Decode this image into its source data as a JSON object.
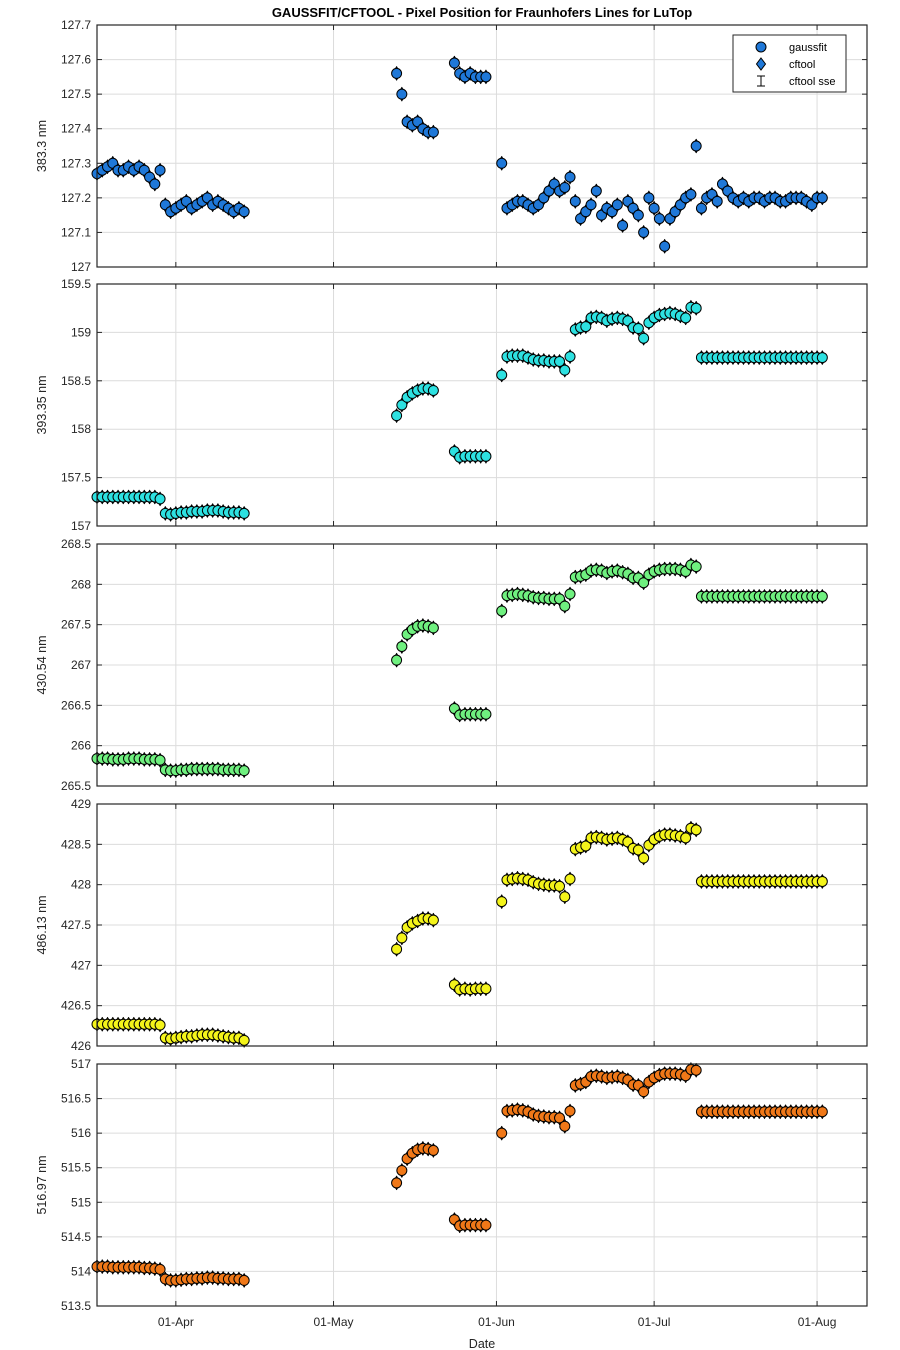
{
  "chart_data": {
    "type": "scatter",
    "title": "GAUSSFIT/CFTOOL - Pixel Position for Fraunhofers Lines for LuTop",
    "xlabel": "Date",
    "x_ticks": [
      "01-Apr",
      "01-May",
      "01-Jun",
      "01-Jul",
      "01-Aug"
    ],
    "x_range_days": [
      -15,
      131.5
    ],
    "x_tick_days": [
      0,
      30,
      61,
      91,
      122
    ],
    "legend": {
      "position": "top-right",
      "entries": [
        "gaussfit",
        "cftool",
        "cftool sse"
      ]
    },
    "panels": [
      {
        "ylabel": "383.3 nm",
        "ylim": [
          127,
          127.7
        ],
        "yticks": [
          "127",
          "127.1",
          "127.2",
          "127.3",
          "127.4",
          "127.5",
          "127.6",
          "127.7"
        ],
        "color": "#1f78d8",
        "x": [
          -15,
          -14,
          -13,
          -12,
          -11,
          -10,
          -9,
          -8,
          -7,
          -6,
          -5,
          -4,
          -3,
          -2,
          -1,
          0,
          1,
          2,
          3,
          4,
          5,
          6,
          7,
          8,
          9,
          10,
          11,
          12,
          13,
          42,
          43,
          44,
          45,
          46,
          47,
          48,
          49,
          53,
          54,
          55,
          56,
          57,
          58,
          59,
          62,
          63,
          64,
          65,
          66,
          67,
          68,
          69,
          70,
          71,
          72,
          73,
          74,
          75,
          76,
          77,
          78,
          79,
          80,
          81,
          82,
          83,
          84,
          85,
          86,
          87,
          88,
          89,
          90,
          91,
          92,
          93,
          94,
          95,
          96,
          97,
          98,
          99,
          100,
          101,
          102,
          103,
          104,
          105,
          106,
          107,
          108,
          109,
          110,
          111,
          112,
          113,
          114,
          115,
          116,
          117,
          118,
          119,
          120,
          121,
          122,
          123
        ],
        "y": [
          127.27,
          127.28,
          127.29,
          127.3,
          127.28,
          127.28,
          127.29,
          127.28,
          127.29,
          127.28,
          127.26,
          127.24,
          127.28,
          127.18,
          127.16,
          127.17,
          127.18,
          127.19,
          127.17,
          127.18,
          127.19,
          127.2,
          127.18,
          127.19,
          127.18,
          127.17,
          127.16,
          127.17,
          127.16,
          127.56,
          127.5,
          127.42,
          127.41,
          127.42,
          127.4,
          127.39,
          127.39,
          127.59,
          127.56,
          127.55,
          127.56,
          127.55,
          127.55,
          127.55,
          127.3,
          127.17,
          127.18,
          127.19,
          127.19,
          127.18,
          127.17,
          127.18,
          127.2,
          127.22,
          127.24,
          127.22,
          127.23,
          127.26,
          127.19,
          127.14,
          127.16,
          127.18,
          127.22,
          127.15,
          127.17,
          127.16,
          127.18,
          127.12,
          127.19,
          127.17,
          127.15,
          127.1,
          127.2,
          127.17,
          127.14,
          127.06,
          127.14,
          127.16,
          127.18,
          127.2,
          127.21,
          127.35,
          127.17,
          127.2,
          127.21,
          127.19,
          127.24,
          127.22,
          127.2,
          127.19,
          127.2,
          127.19,
          127.2,
          127.2,
          127.19,
          127.2,
          127.2,
          127.19,
          127.19,
          127.2,
          127.2,
          127.2,
          127.19,
          127.18,
          127.2,
          127.2
        ]
      },
      {
        "ylabel": "393.35 nm",
        "ylim": [
          157,
          159.5
        ],
        "yticks": [
          "157",
          "157.5",
          "158",
          "158.5",
          "159",
          "159.5"
        ],
        "color": "#2de1e1",
        "x": [
          -15,
          -14,
          -13,
          -12,
          -11,
          -10,
          -9,
          -8,
          -7,
          -6,
          -5,
          -4,
          -3,
          -2,
          -1,
          0,
          1,
          2,
          3,
          4,
          5,
          6,
          7,
          8,
          9,
          10,
          11,
          12,
          13,
          42,
          43,
          44,
          45,
          46,
          47,
          48,
          49,
          53,
          54,
          55,
          56,
          57,
          58,
          59,
          62,
          63,
          64,
          65,
          66,
          67,
          68,
          69,
          70,
          71,
          72,
          73,
          74,
          75,
          76,
          77,
          78,
          79,
          80,
          81,
          82,
          83,
          84,
          85,
          86,
          87,
          88,
          89,
          90,
          91,
          92,
          93,
          94,
          95,
          96,
          97,
          98,
          99,
          100,
          101,
          102,
          103,
          104,
          105,
          106,
          107,
          108,
          109,
          110,
          111,
          112,
          113,
          114,
          115,
          116,
          117,
          118,
          119,
          120,
          121,
          122,
          123
        ],
        "y": [
          157.3,
          157.3,
          157.3,
          157.3,
          157.3,
          157.3,
          157.3,
          157.3,
          157.3,
          157.3,
          157.3,
          157.3,
          157.28,
          157.13,
          157.12,
          157.13,
          157.14,
          157.14,
          157.15,
          157.15,
          157.15,
          157.16,
          157.16,
          157.16,
          157.15,
          157.14,
          157.14,
          157.14,
          157.13,
          158.14,
          158.25,
          158.33,
          158.37,
          158.4,
          158.42,
          158.42,
          158.4,
          157.77,
          157.71,
          157.72,
          157.72,
          157.72,
          157.72,
          157.72,
          158.56,
          158.75,
          158.76,
          158.76,
          158.76,
          158.74,
          158.72,
          158.71,
          158.71,
          158.7,
          158.7,
          158.7,
          158.61,
          158.75,
          159.03,
          159.05,
          159.06,
          159.15,
          159.16,
          159.15,
          159.12,
          159.14,
          159.15,
          159.14,
          159.12,
          159.05,
          159.04,
          158.94,
          159.1,
          159.15,
          159.18,
          159.19,
          159.2,
          159.19,
          159.17,
          159.15,
          159.26,
          159.25,
          158.74,
          158.74,
          158.74,
          158.74,
          158.74,
          158.74,
          158.74,
          158.74,
          158.74,
          158.74,
          158.74,
          158.74,
          158.74,
          158.74,
          158.74,
          158.74,
          158.74,
          158.74,
          158.74,
          158.74,
          158.74,
          158.74,
          158.74,
          158.74
        ]
      },
      {
        "ylabel": "430.54 nm",
        "ylim": [
          265.5,
          268.5
        ],
        "yticks": [
          "265.5",
          "266",
          "266.5",
          "267",
          "267.5",
          "268",
          "268.5"
        ],
        "color": "#6ff07f",
        "x": [
          -15,
          -14,
          -13,
          -12,
          -11,
          -10,
          -9,
          -8,
          -7,
          -6,
          -5,
          -4,
          -3,
          -2,
          -1,
          0,
          1,
          2,
          3,
          4,
          5,
          6,
          7,
          8,
          9,
          10,
          11,
          12,
          13,
          42,
          43,
          44,
          45,
          46,
          47,
          48,
          49,
          53,
          54,
          55,
          56,
          57,
          58,
          59,
          62,
          63,
          64,
          65,
          66,
          67,
          68,
          69,
          70,
          71,
          72,
          73,
          74,
          75,
          76,
          77,
          78,
          79,
          80,
          81,
          82,
          83,
          84,
          85,
          86,
          87,
          88,
          89,
          90,
          91,
          92,
          93,
          94,
          95,
          96,
          97,
          98,
          99,
          100,
          101,
          102,
          103,
          104,
          105,
          106,
          107,
          108,
          109,
          110,
          111,
          112,
          113,
          114,
          115,
          116,
          117,
          118,
          119,
          120,
          121,
          122,
          123
        ],
        "y": [
          265.84,
          265.84,
          265.84,
          265.83,
          265.83,
          265.83,
          265.84,
          265.84,
          265.84,
          265.83,
          265.83,
          265.83,
          265.82,
          265.7,
          265.69,
          265.69,
          265.7,
          265.7,
          265.71,
          265.71,
          265.71,
          265.71,
          265.71,
          265.71,
          265.7,
          265.7,
          265.7,
          265.7,
          265.69,
          267.06,
          267.23,
          267.38,
          267.44,
          267.48,
          267.49,
          267.48,
          267.46,
          266.46,
          266.38,
          266.39,
          266.39,
          266.39,
          266.39,
          266.39,
          267.67,
          267.86,
          267.87,
          267.88,
          267.87,
          267.86,
          267.84,
          267.83,
          267.83,
          267.82,
          267.82,
          267.82,
          267.73,
          267.88,
          268.09,
          268.1,
          268.12,
          268.17,
          268.18,
          268.17,
          268.14,
          268.16,
          268.17,
          268.15,
          268.13,
          268.08,
          268.08,
          268.02,
          268.12,
          268.16,
          268.18,
          268.19,
          268.19,
          268.19,
          268.18,
          268.16,
          268.24,
          268.22,
          267.85,
          267.85,
          267.85,
          267.85,
          267.85,
          267.85,
          267.85,
          267.85,
          267.85,
          267.85,
          267.85,
          267.85,
          267.85,
          267.85,
          267.85,
          267.85,
          267.85,
          267.85,
          267.85,
          267.85,
          267.85,
          267.85,
          267.85,
          267.85
        ]
      },
      {
        "ylabel": "486.13 nm",
        "ylim": [
          426,
          429
        ],
        "yticks": [
          "426",
          "426.5",
          "427",
          "427.5",
          "428",
          "428.5",
          "429"
        ],
        "color": "#f4f41a",
        "x": [
          -15,
          -14,
          -13,
          -12,
          -11,
          -10,
          -9,
          -8,
          -7,
          -6,
          -5,
          -4,
          -3,
          -2,
          -1,
          0,
          1,
          2,
          3,
          4,
          5,
          6,
          7,
          8,
          9,
          10,
          11,
          12,
          13,
          42,
          43,
          44,
          45,
          46,
          47,
          48,
          49,
          53,
          54,
          55,
          56,
          57,
          58,
          59,
          62,
          63,
          64,
          65,
          66,
          67,
          68,
          69,
          70,
          71,
          72,
          73,
          74,
          75,
          76,
          77,
          78,
          79,
          80,
          81,
          82,
          83,
          84,
          85,
          86,
          87,
          88,
          89,
          90,
          91,
          92,
          93,
          94,
          95,
          96,
          97,
          98,
          99,
          100,
          101,
          102,
          103,
          104,
          105,
          106,
          107,
          108,
          109,
          110,
          111,
          112,
          113,
          114,
          115,
          116,
          117,
          118,
          119,
          120,
          121,
          122,
          123
        ],
        "y": [
          426.27,
          426.27,
          426.27,
          426.27,
          426.27,
          426.27,
          426.27,
          426.27,
          426.27,
          426.27,
          426.27,
          426.27,
          426.26,
          426.1,
          426.09,
          426.1,
          426.11,
          426.12,
          426.12,
          426.13,
          426.14,
          426.14,
          426.14,
          426.13,
          426.12,
          426.11,
          426.1,
          426.1,
          426.07,
          427.2,
          427.34,
          427.47,
          427.52,
          427.55,
          427.58,
          427.58,
          427.56,
          426.76,
          426.7,
          426.71,
          426.7,
          426.71,
          426.71,
          426.71,
          427.79,
          428.06,
          428.07,
          428.08,
          428.07,
          428.06,
          428.03,
          428.01,
          428.0,
          427.99,
          427.99,
          427.98,
          427.85,
          428.07,
          428.44,
          428.46,
          428.48,
          428.58,
          428.59,
          428.58,
          428.56,
          428.57,
          428.58,
          428.56,
          428.53,
          428.45,
          428.43,
          428.33,
          428.49,
          428.56,
          428.6,
          428.62,
          428.62,
          428.61,
          428.6,
          428.58,
          428.7,
          428.68,
          428.04,
          428.04,
          428.04,
          428.04,
          428.04,
          428.04,
          428.04,
          428.04,
          428.04,
          428.04,
          428.04,
          428.04,
          428.04,
          428.04,
          428.04,
          428.04,
          428.04,
          428.04,
          428.04,
          428.04,
          428.04,
          428.04,
          428.04,
          428.04
        ]
      },
      {
        "ylabel": "516.97 nm",
        "ylim": [
          513.5,
          517
        ],
        "yticks": [
          "513.5",
          "514",
          "514.5",
          "515",
          "515.5",
          "516",
          "516.5",
          "517"
        ],
        "color": "#f07818",
        "x": [
          -15,
          -14,
          -13,
          -12,
          -11,
          -10,
          -9,
          -8,
          -7,
          -6,
          -5,
          -4,
          -3,
          -2,
          -1,
          0,
          1,
          2,
          3,
          4,
          5,
          6,
          7,
          8,
          9,
          10,
          11,
          12,
          13,
          42,
          43,
          44,
          45,
          46,
          47,
          48,
          49,
          53,
          54,
          55,
          56,
          57,
          58,
          59,
          62,
          63,
          64,
          65,
          66,
          67,
          68,
          69,
          70,
          71,
          72,
          73,
          74,
          75,
          76,
          77,
          78,
          79,
          80,
          81,
          82,
          83,
          84,
          85,
          86,
          87,
          88,
          89,
          90,
          91,
          92,
          93,
          94,
          95,
          96,
          97,
          98,
          99,
          100,
          101,
          102,
          103,
          104,
          105,
          106,
          107,
          108,
          109,
          110,
          111,
          112,
          113,
          114,
          115,
          116,
          117,
          118,
          119,
          120,
          121,
          122,
          123
        ],
        "y": [
          514.07,
          514.07,
          514.07,
          514.06,
          514.06,
          514.06,
          514.06,
          514.06,
          514.06,
          514.05,
          514.05,
          514.04,
          514.03,
          513.89,
          513.87,
          513.87,
          513.88,
          513.89,
          513.89,
          513.9,
          513.9,
          513.91,
          513.91,
          513.9,
          513.9,
          513.89,
          513.89,
          513.89,
          513.87,
          515.28,
          515.46,
          515.63,
          515.71,
          515.76,
          515.78,
          515.77,
          515.75,
          514.75,
          514.66,
          514.67,
          514.67,
          514.67,
          514.67,
          514.67,
          516.0,
          516.32,
          516.33,
          516.34,
          516.33,
          516.31,
          516.27,
          516.25,
          516.24,
          516.23,
          516.23,
          516.22,
          516.1,
          516.32,
          516.69,
          516.71,
          516.74,
          516.82,
          516.83,
          516.82,
          516.8,
          516.81,
          516.82,
          516.8,
          516.77,
          516.7,
          516.69,
          516.6,
          516.74,
          516.8,
          516.84,
          516.86,
          516.86,
          516.86,
          516.85,
          516.83,
          516.92,
          516.91,
          516.31,
          516.31,
          516.31,
          516.31,
          516.31,
          516.31,
          516.31,
          516.31,
          516.31,
          516.31,
          516.31,
          516.31,
          516.31,
          516.31,
          516.31,
          516.31,
          516.31,
          516.31,
          516.31,
          516.31,
          516.31,
          516.31,
          516.31,
          516.31
        ]
      }
    ]
  }
}
